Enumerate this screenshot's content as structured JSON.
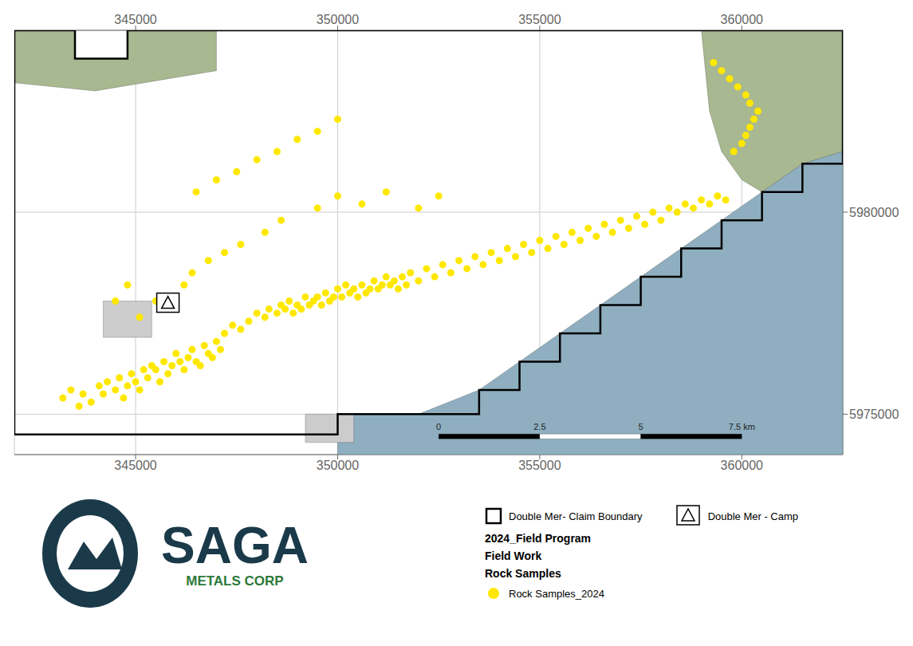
{
  "chart_data": {
    "type": "scatter",
    "xlim": [
      342000,
      362500
    ],
    "ylim": [
      5974000,
      5984500
    ],
    "xticks": [
      345000,
      350000,
      355000,
      360000
    ],
    "yticks": [
      5975000,
      5980000
    ],
    "grid": true,
    "series": [
      {
        "type": "area",
        "color": "#8fafc0",
        "values": [
          [
            350000,
            5974000
          ],
          [
            362500,
            5974000
          ],
          [
            362500,
            5982000
          ],
          [
            361500,
            5981200
          ],
          [
            360500,
            5980500
          ],
          [
            359500,
            5979800
          ],
          [
            358500,
            5979100
          ],
          [
            357500,
            5978400
          ],
          [
            356500,
            5977700
          ],
          [
            355500,
            5977000
          ],
          [
            354500,
            5976300
          ],
          [
            353500,
            5975600
          ],
          [
            352000,
            5975000
          ],
          [
            350000,
            5975000
          ]
        ]
      },
      {
        "type": "area",
        "color": "#a8b890",
        "values": [
          [
            359000,
            5984500
          ],
          [
            362500,
            5984500
          ],
          [
            362500,
            5981500
          ],
          [
            361500,
            5981200
          ],
          [
            360500,
            5980500
          ],
          [
            360000,
            5980800
          ],
          [
            359500,
            5981500
          ],
          [
            359200,
            5982500
          ],
          [
            359000,
            5984500
          ]
        ]
      },
      {
        "type": "area",
        "color": "#a8b890",
        "values": [
          [
            342000,
            5984500
          ],
          [
            343500,
            5984500
          ],
          [
            343500,
            5983800
          ],
          [
            344800,
            5983800
          ],
          [
            344800,
            5984500
          ],
          [
            347000,
            5984500
          ],
          [
            347000,
            5983500
          ],
          [
            344000,
            5983000
          ],
          [
            342000,
            5983200
          ]
        ]
      },
      {
        "type": "area",
        "color": "#cccccc",
        "values": [
          [
            344200,
            5976900
          ],
          [
            345400,
            5976900
          ],
          [
            345400,
            5977800
          ],
          [
            344200,
            5977800
          ]
        ]
      },
      {
        "type": "area",
        "color": "#cccccc",
        "values": [
          [
            349200,
            5974300
          ],
          [
            350400,
            5974300
          ],
          [
            350400,
            5975000
          ],
          [
            349200,
            5975000
          ]
        ]
      },
      {
        "type": "line",
        "name": "Double Mer- Claim Boundary",
        "color": "#000000",
        "line_style": "solid",
        "values": [
          [
            342000,
            5984500
          ],
          [
            343500,
            5984500
          ],
          [
            343500,
            5983800
          ],
          [
            344800,
            5983800
          ],
          [
            344800,
            5984500
          ],
          [
            362500,
            5984500
          ],
          [
            362500,
            5981200
          ],
          [
            361500,
            5981200
          ],
          [
            361500,
            5980500
          ],
          [
            360500,
            5980500
          ],
          [
            360500,
            5979800
          ],
          [
            359500,
            5979800
          ],
          [
            359500,
            5979100
          ],
          [
            358500,
            5979100
          ],
          [
            358500,
            5978400
          ],
          [
            357500,
            5978400
          ],
          [
            357500,
            5977700
          ],
          [
            356500,
            5977700
          ],
          [
            356500,
            5977000
          ],
          [
            355500,
            5977000
          ],
          [
            355500,
            5976300
          ],
          [
            354500,
            5976300
          ],
          [
            354500,
            5975600
          ],
          [
            353500,
            5975600
          ],
          [
            353500,
            5975000
          ],
          [
            350000,
            5975000
          ],
          [
            350000,
            5974500
          ],
          [
            342000,
            5974500
          ],
          [
            342000,
            5984500
          ]
        ]
      },
      {
        "type": "area",
        "color": "#000000",
        "values": [
          [
            352500,
            5974390
          ],
          [
            355000,
            5974390
          ],
          [
            355000,
            5974510
          ],
          [
            352500,
            5974510
          ]
        ]
      },
      {
        "type": "area",
        "color": "#ffffff",
        "values": [
          [
            355000,
            5974390
          ],
          [
            357500,
            5974390
          ],
          [
            357500,
            5974510
          ],
          [
            355000,
            5974510
          ]
        ]
      },
      {
        "type": "area",
        "color": "#000000",
        "values": [
          [
            357500,
            5974390
          ],
          [
            360000,
            5974390
          ],
          [
            360000,
            5974510
          ],
          [
            357500,
            5974510
          ]
        ]
      },
      {
        "type": "scatter",
        "name": "Rock Samples_2024",
        "color": "#FFE800",
        "marker": "circle",
        "values": [
          [
            343200,
            5975400
          ],
          [
            343400,
            5975600
          ],
          [
            343600,
            5975200
          ],
          [
            343700,
            5975500
          ],
          [
            343900,
            5975300
          ],
          [
            344100,
            5975700
          ],
          [
            344200,
            5975500
          ],
          [
            344300,
            5975800
          ],
          [
            344500,
            5975600
          ],
          [
            344600,
            5975900
          ],
          [
            344700,
            5975400
          ],
          [
            344800,
            5975700
          ],
          [
            344900,
            5976000
          ],
          [
            345000,
            5975800
          ],
          [
            345100,
            5975600
          ],
          [
            345200,
            5976100
          ],
          [
            345300,
            5975900
          ],
          [
            345400,
            5976200
          ],
          [
            345500,
            5976100
          ],
          [
            345600,
            5975800
          ],
          [
            345700,
            5976300
          ],
          [
            345800,
            5976000
          ],
          [
            345900,
            5976200
          ],
          [
            346000,
            5976500
          ],
          [
            346100,
            5976300
          ],
          [
            346200,
            5976100
          ],
          [
            346300,
            5976400
          ],
          [
            346400,
            5976600
          ],
          [
            346500,
            5976300
          ],
          [
            346600,
            5976200
          ],
          [
            346700,
            5976700
          ],
          [
            346800,
            5976500
          ],
          [
            346900,
            5976400
          ],
          [
            347000,
            5976800
          ],
          [
            347100,
            5976600
          ],
          [
            347200,
            5977000
          ],
          [
            347400,
            5977200
          ],
          [
            347600,
            5977100
          ],
          [
            347800,
            5977300
          ],
          [
            348000,
            5977500
          ],
          [
            348200,
            5977400
          ],
          [
            348300,
            5977600
          ],
          [
            348500,
            5977500
          ],
          [
            348600,
            5977700
          ],
          [
            348700,
            5977600
          ],
          [
            348800,
            5977800
          ],
          [
            348900,
            5977500
          ],
          [
            349000,
            5977700
          ],
          [
            349100,
            5977600
          ],
          [
            349200,
            5977900
          ],
          [
            349300,
            5977700
          ],
          [
            349400,
            5977800
          ],
          [
            349500,
            5977900
          ],
          [
            349600,
            5977700
          ],
          [
            349700,
            5978000
          ],
          [
            349800,
            5977800
          ],
          [
            349900,
            5977900
          ],
          [
            350000,
            5978100
          ],
          [
            350100,
            5977900
          ],
          [
            350200,
            5978200
          ],
          [
            350300,
            5978000
          ],
          [
            350400,
            5978100
          ],
          [
            350500,
            5977900
          ],
          [
            350600,
            5978200
          ],
          [
            350700,
            5978000
          ],
          [
            350800,
            5978100
          ],
          [
            350900,
            5978300
          ],
          [
            351000,
            5978100
          ],
          [
            351100,
            5978200
          ],
          [
            351200,
            5978400
          ],
          [
            351300,
            5978200
          ],
          [
            351400,
            5978300
          ],
          [
            351500,
            5978100
          ],
          [
            351600,
            5978400
          ],
          [
            351700,
            5978200
          ],
          [
            351800,
            5978500
          ],
          [
            352000,
            5978300
          ],
          [
            352200,
            5978600
          ],
          [
            352400,
            5978400
          ],
          [
            352600,
            5978700
          ],
          [
            352800,
            5978500
          ],
          [
            353000,
            5978800
          ],
          [
            353200,
            5978600
          ],
          [
            353400,
            5978900
          ],
          [
            353600,
            5978700
          ],
          [
            353800,
            5979000
          ],
          [
            354000,
            5978800
          ],
          [
            354200,
            5979100
          ],
          [
            354400,
            5978900
          ],
          [
            354600,
            5979200
          ],
          [
            354800,
            5979000
          ],
          [
            355000,
            5979300
          ],
          [
            355200,
            5979100
          ],
          [
            355400,
            5979400
          ],
          [
            355600,
            5979200
          ],
          [
            355800,
            5979500
          ],
          [
            356000,
            5979300
          ],
          [
            356200,
            5979600
          ],
          [
            356400,
            5979400
          ],
          [
            356600,
            5979700
          ],
          [
            356800,
            5979500
          ],
          [
            357000,
            5979800
          ],
          [
            357200,
            5979600
          ],
          [
            357400,
            5979900
          ],
          [
            357600,
            5979700
          ],
          [
            357800,
            5980000
          ],
          [
            358000,
            5979800
          ],
          [
            358200,
            5980100
          ],
          [
            358400,
            5980000
          ],
          [
            358600,
            5980200
          ],
          [
            358800,
            5980100
          ],
          [
            359000,
            5980300
          ],
          [
            359200,
            5980200
          ],
          [
            359400,
            5980400
          ],
          [
            359600,
            5980300
          ],
          [
            346200,
            5978200
          ],
          [
            346400,
            5978500
          ],
          [
            346800,
            5978800
          ],
          [
            347200,
            5979000
          ],
          [
            347600,
            5979200
          ],
          [
            348200,
            5979500
          ],
          [
            348600,
            5979800
          ],
          [
            349500,
            5980100
          ],
          [
            350000,
            5980400
          ],
          [
            350600,
            5980200
          ],
          [
            351200,
            5980500
          ],
          [
            352000,
            5980100
          ],
          [
            352500,
            5980400
          ],
          [
            344500,
            5977800
          ],
          [
            344800,
            5978200
          ],
          [
            345100,
            5977400
          ],
          [
            345500,
            5977800
          ],
          [
            346500,
            5980500
          ],
          [
            347000,
            5980800
          ],
          [
            347500,
            5981000
          ],
          [
            348000,
            5981300
          ],
          [
            348500,
            5981500
          ],
          [
            349000,
            5981800
          ],
          [
            349500,
            5982000
          ],
          [
            350000,
            5982300
          ],
          [
            359800,
            5981500
          ],
          [
            360000,
            5981700
          ],
          [
            360100,
            5981900
          ],
          [
            360200,
            5982100
          ],
          [
            360300,
            5982300
          ],
          [
            360400,
            5982500
          ],
          [
            360200,
            5982700
          ],
          [
            360100,
            5982900
          ],
          [
            359900,
            5983100
          ],
          [
            359700,
            5983300
          ],
          [
            359500,
            5983500
          ],
          [
            359300,
            5983700
          ]
        ]
      },
      {
        "type": "scatter",
        "name": "Double Mer - Camp",
        "color": "#000000",
        "marker": "triangle",
        "values": [
          [
            345800,
            5977700
          ]
        ]
      }
    ],
    "annotations": [
      {
        "text": "0",
        "x": 352500,
        "y": 5974570
      },
      {
        "text": "2.5",
        "x": 355000,
        "y": 5974570
      },
      {
        "text": "5",
        "x": 357500,
        "y": 5974570
      },
      {
        "text": "7.5 km",
        "x": 360000,
        "y": 5974570
      },
      {
        "text": "SAGA",
        "color": "#1a3a4a"
      },
      {
        "text": "METALS CORP",
        "color": "#2d7a3a"
      },
      {
        "text": "2024_Field Program"
      },
      {
        "text": "Field Work"
      },
      {
        "text": "Rock Samples"
      }
    ]
  }
}
